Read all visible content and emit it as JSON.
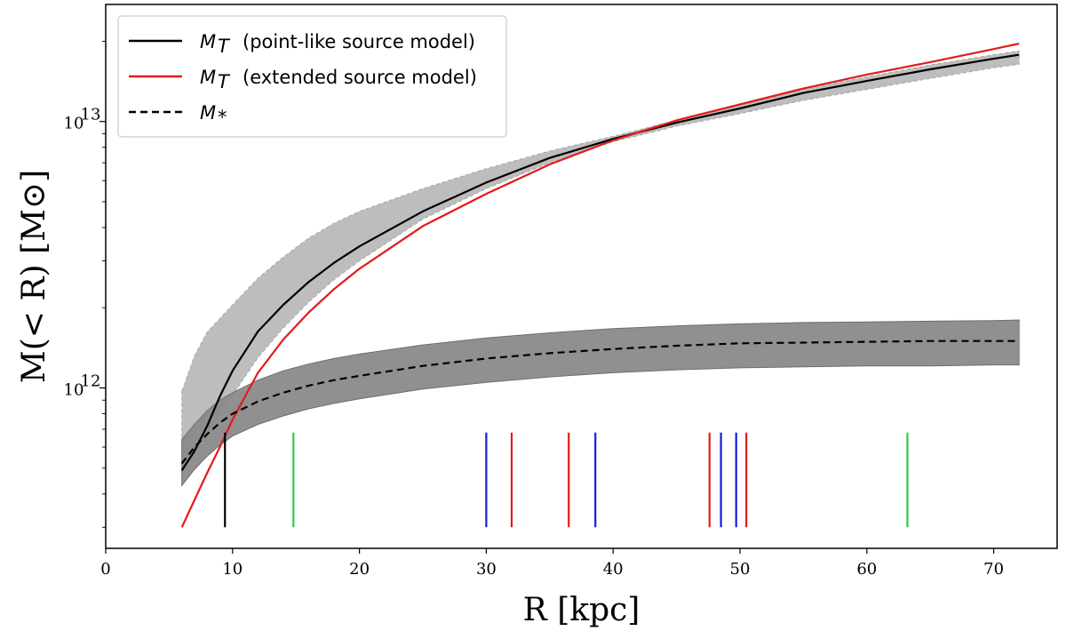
{
  "chart_data": {
    "type": "line",
    "xlabel": "R [kpc]",
    "ylabel": "M(< R) [M⊙]",
    "xscale": "linear",
    "yscale": "log",
    "xlim": [
      0,
      75
    ],
    "ylim": [
      250000000000,
      27500000000000
    ],
    "x_ticks": [
      0,
      10,
      20,
      30,
      40,
      50,
      60,
      70
    ],
    "y_ticks": [
      {
        "value": 1000000000000,
        "label": "10",
        "exponent": "12"
      },
      {
        "value": 10000000000000,
        "label": "10",
        "exponent": "13"
      }
    ],
    "legend": {
      "position": "top-left",
      "entries": [
        {
          "symbol": "M",
          "subscript": "T",
          "text": "(point-like source model)",
          "color": "#000000",
          "style": "solid"
        },
        {
          "symbol": "M",
          "subscript": "T",
          "text": "(extended source model)",
          "color": "#e31a1c",
          "style": "solid"
        },
        {
          "symbol": "M",
          "subscript": "*",
          "text": "",
          "color": "#000000",
          "style": "dashed"
        }
      ]
    },
    "series": [
      {
        "name": "M_T (point-like source model)",
        "color": "#000000",
        "style": "solid",
        "x": [
          6,
          7,
          8,
          9,
          10,
          12,
          14,
          16,
          18,
          20,
          25,
          30,
          35,
          40,
          45,
          50,
          55,
          60,
          65,
          70,
          72
        ],
        "y": [
          490000000000.0,
          580000000000.0,
          720000000000.0,
          930000000000.0,
          1160000000000.0,
          1630000000000.0,
          2050000000000.0,
          2500000000000.0,
          2950000000000.0,
          3400000000000.0,
          4600000000000.0,
          5900000000000.0,
          7300000000000.0,
          8600000000000.0,
          9900000000000.0,
          11200000000000.0,
          12800000000000.0,
          14200000000000.0,
          15700000000000.0,
          17200000000000.0,
          17800000000000.0
        ]
      },
      {
        "name": "M_T (extended source model)",
        "color": "#e31a1c",
        "style": "solid",
        "x": [
          6,
          7,
          8,
          9,
          10,
          12,
          14,
          16,
          18,
          20,
          25,
          30,
          35,
          40,
          45,
          50,
          55,
          60,
          65,
          70,
          72
        ],
        "y": [
          300000000000.0,
          380000000000.0,
          480000000000.0,
          600000000000.0,
          760000000000.0,
          1140000000000.0,
          1520000000000.0,
          1920000000000.0,
          2350000000000.0,
          2800000000000.0,
          4050000000000.0,
          5350000000000.0,
          6900000000000.0,
          8500000000000.0,
          10100000000000.0,
          11600000000000.0,
          13300000000000.0,
          15000000000000.0,
          16700000000000.0,
          18700000000000.0,
          19600000000000.0
        ]
      },
      {
        "name": "M_*",
        "color": "#000000",
        "style": "dashed",
        "x": [
          6,
          7,
          8,
          9,
          10,
          12,
          14,
          16,
          18,
          20,
          25,
          30,
          35,
          40,
          45,
          50,
          55,
          60,
          65,
          70,
          72
        ],
        "y": [
          520000000000.0,
          600000000000.0,
          670000000000.0,
          740000000000.0,
          800000000000.0,
          890000000000.0,
          960000000000.0,
          1020000000000.0,
          1070000000000.0,
          1110000000000.0,
          1210000000000.0,
          1290000000000.0,
          1350000000000.0,
          1400000000000.0,
          1440000000000.0,
          1470000000000.0,
          1480000000000.0,
          1490000000000.0,
          1500000000000.0,
          1500000000000.0,
          1500000000000.0
        ]
      }
    ],
    "bands": [
      {
        "name": "M_T uncertainty",
        "color": "#bdbdbd",
        "x": [
          6,
          7,
          8,
          9,
          10,
          12,
          14,
          16,
          18,
          20,
          25,
          30,
          35,
          40,
          45,
          50,
          55,
          60,
          65,
          70,
          72
        ],
        "lower": [
          490000000000.0,
          580000000000.0,
          680000000000.0,
          800000000000.0,
          940000000000.0,
          1300000000000.0,
          1680000000000.0,
          2100000000000.0,
          2550000000000.0,
          3000000000000.0,
          4300000000000.0,
          5600000000000.0,
          7000000000000.0,
          8400000000000.0,
          9600000000000.0,
          10700000000000.0,
          12000000000000.0,
          13200000000000.0,
          14500000000000.0,
          15900000000000.0,
          16400000000000.0
        ],
        "upper": [
          970000000000.0,
          1320000000000.0,
          1620000000000.0,
          1820000000000.0,
          2050000000000.0,
          2580000000000.0,
          3100000000000.0,
          3650000000000.0,
          4150000000000.0,
          4600000000000.0,
          5600000000000.0,
          6650000000000.0,
          7750000000000.0,
          8800000000000.0,
          10100000000000.0,
          11500000000000.0,
          13200000000000.0,
          14700000000000.0,
          16300000000000.0,
          17800000000000.0,
          18400000000000.0
        ]
      },
      {
        "name": "M_* uncertainty",
        "color": "#8a8a8a",
        "x": [
          6,
          7,
          8,
          9,
          10,
          12,
          14,
          16,
          18,
          20,
          25,
          30,
          35,
          40,
          45,
          50,
          55,
          60,
          65,
          70,
          72
        ],
        "lower": [
          430000000000.0,
          495000000000.0,
          555000000000.0,
          610000000000.0,
          660000000000.0,
          730000000000.0,
          785000000000.0,
          835000000000.0,
          875000000000.0,
          910000000000.0,
          990000000000.0,
          1050000000000.0,
          1100000000000.0,
          1140000000000.0,
          1170000000000.0,
          1190000000000.0,
          1200000000000.0,
          1210000000000.0,
          1210000000000.0,
          1220000000000.0,
          1220000000000.0
        ],
        "upper": [
          640000000000.0,
          730000000000.0,
          820000000000.0,
          900000000000.0,
          960000000000.0,
          1070000000000.0,
          1160000000000.0,
          1230000000000.0,
          1290000000000.0,
          1340000000000.0,
          1450000000000.0,
          1540000000000.0,
          1610000000000.0,
          1670000000000.0,
          1710000000000.0,
          1740000000000.0,
          1760000000000.0,
          1770000000000.0,
          1780000000000.0,
          1790000000000.0,
          1800000000000.0
        ]
      }
    ],
    "vertical_markers": [
      {
        "x": 9.4,
        "color": "#000000",
        "y_top": 680000000000.0
      },
      {
        "x": 14.8,
        "color": "#2ecc40",
        "y_top": 680000000000.0
      },
      {
        "x": 30.0,
        "color": "#1a1adb",
        "y_top": 680000000000.0
      },
      {
        "x": 32.0,
        "color": "#e31a1c",
        "y_top": 680000000000.0
      },
      {
        "x": 36.5,
        "color": "#e31a1c",
        "y_top": 680000000000.0
      },
      {
        "x": 38.6,
        "color": "#1a1adb",
        "y_top": 680000000000.0
      },
      {
        "x": 47.6,
        "color": "#e31a1c",
        "y_top": 680000000000.0
      },
      {
        "x": 48.5,
        "color": "#1a1adb",
        "y_top": 680000000000.0
      },
      {
        "x": 49.7,
        "color": "#1a1adb",
        "y_top": 680000000000.0
      },
      {
        "x": 50.5,
        "color": "#e31a1c",
        "y_top": 680000000000.0
      },
      {
        "x": 63.2,
        "color": "#2ecc40",
        "y_top": 680000000000.0
      }
    ],
    "marker_bottom": 300000000000.0
  }
}
